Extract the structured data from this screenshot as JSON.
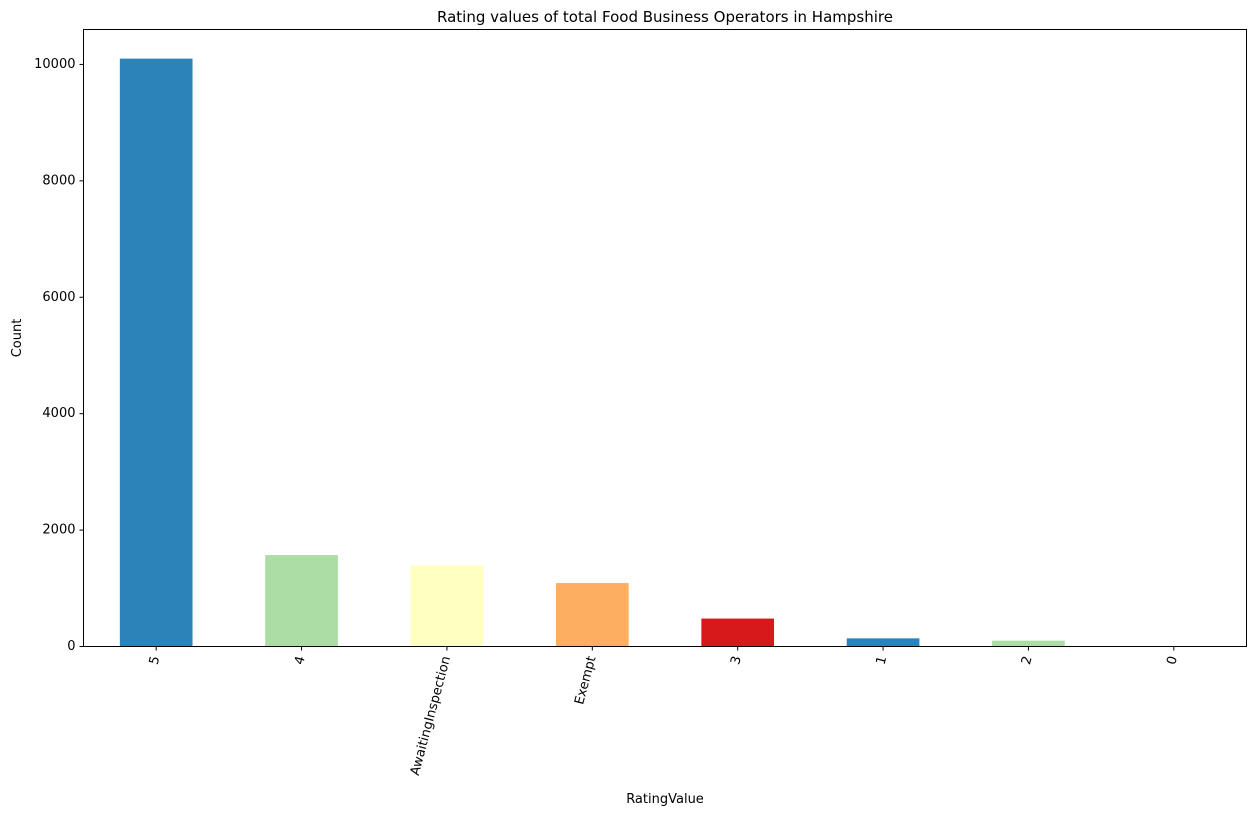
{
  "chart_data": {
    "type": "bar",
    "title": "Rating values of total Food Business Operators in Hampshire",
    "xlabel": "RatingValue",
    "ylabel": "Count",
    "categories": [
      "5",
      "4",
      "AwaitingInspection",
      "Exempt",
      "3",
      "1",
      "2",
      "0"
    ],
    "values": [
      10100,
      1570,
      1390,
      1090,
      480,
      140,
      100,
      10
    ],
    "colors": [
      "#2b83ba",
      "#abdda4",
      "#ffffbf",
      "#fdae61",
      "#d7191c",
      "#2b83ba",
      "#abdda4",
      "#ffffbf"
    ],
    "yticks": [
      0,
      2000,
      4000,
      6000,
      8000,
      10000
    ],
    "ylim": [
      0,
      10600
    ],
    "xtick_rotation": 75,
    "grid": false,
    "legend": "none"
  }
}
